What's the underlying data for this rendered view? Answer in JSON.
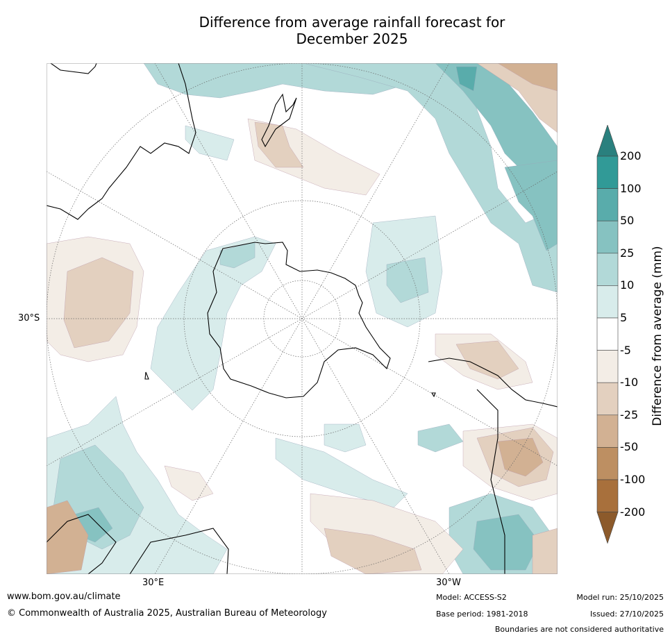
{
  "title": {
    "line1": "Difference from average rainfall forecast for",
    "line2": "December 2025"
  },
  "map": {
    "projection": "south-polar-stereographic",
    "lon_labels": [
      "30°E",
      "30°W"
    ],
    "lat_labels": [
      "30°S"
    ]
  },
  "legend": {
    "title": "Difference from average (mm)",
    "ticks": [
      "200",
      "100",
      "50",
      "25",
      "10",
      "5",
      "-5",
      "-10",
      "-25",
      "-50",
      "-100",
      "-200"
    ],
    "colors": [
      "#2a807e",
      "#319a97",
      "#59acab",
      "#86c2c1",
      "#b2d9d8",
      "#d8eceb",
      "#ffffff",
      "#f3ede6",
      "#e3d0bf",
      "#d2b193",
      "#bd8f62",
      "#a8703c",
      "#8c5a2b"
    ]
  },
  "footer": {
    "website": "www.bom.gov.au/climate",
    "copyright": "© Commonwealth of Australia 2025, Australian Bureau of Meteorology",
    "model": "Model: ACCESS-S2",
    "base_period": "Base period: 1981-2018",
    "model_run": "Model run: 25/10/2025",
    "issued": "Issued: 27/10/2025",
    "disclaimer": "Boundaries are not considered authoritative"
  }
}
